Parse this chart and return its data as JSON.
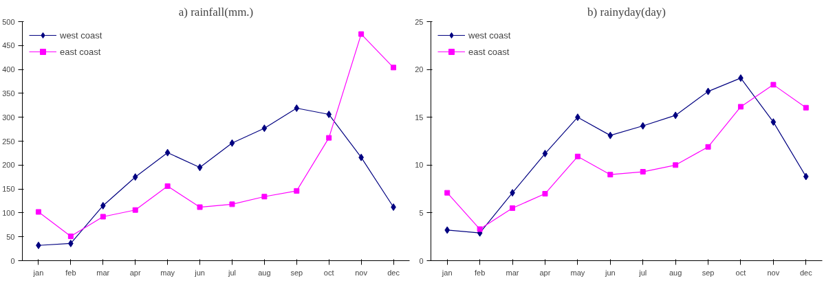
{
  "chart_data": [
    {
      "type": "line",
      "title": "a) rainfall(mm.)",
      "categories": [
        "jan",
        "feb",
        "mar",
        "apr",
        "may",
        "jun",
        "jul",
        "aug",
        "sep",
        "oct",
        "nov",
        "dec"
      ],
      "ylim": [
        0,
        500
      ],
      "yticks": [
        0,
        50,
        100,
        150,
        200,
        250,
        300,
        350,
        400,
        450,
        500
      ],
      "grid": false,
      "legend": "top left",
      "series": [
        {
          "name": "west coast",
          "color": "#000080",
          "marker": "diamond",
          "values": [
            32,
            36,
            115,
            175,
            226,
            195,
            246,
            277,
            319,
            306,
            216,
            112
          ]
        },
        {
          "name": "east coast",
          "color": "#ff00ff",
          "marker": "square",
          "values": [
            102,
            51,
            92,
            106,
            156,
            112,
            118,
            134,
            146,
            257,
            474,
            404
          ]
        }
      ]
    },
    {
      "type": "line",
      "title": "b) rainyday(day)",
      "categories": [
        "jan",
        "feb",
        "mar",
        "apr",
        "may",
        "jun",
        "jul",
        "aug",
        "sep",
        "oct",
        "nov",
        "dec"
      ],
      "ylim": [
        0,
        25
      ],
      "yticks": [
        0,
        5,
        10,
        15,
        20,
        25
      ],
      "grid": false,
      "legend": "top left",
      "series": [
        {
          "name": "west coast",
          "color": "#000080",
          "marker": "diamond",
          "values": [
            3.2,
            2.9,
            7.1,
            11.2,
            15.0,
            13.1,
            14.1,
            15.2,
            17.7,
            19.1,
            14.5,
            8.8
          ]
        },
        {
          "name": "east coast",
          "color": "#ff00ff",
          "marker": "square",
          "values": [
            7.1,
            3.3,
            5.5,
            7.0,
            10.9,
            9.0,
            9.3,
            10.0,
            11.9,
            16.1,
            18.4,
            16.0
          ]
        }
      ]
    }
  ]
}
